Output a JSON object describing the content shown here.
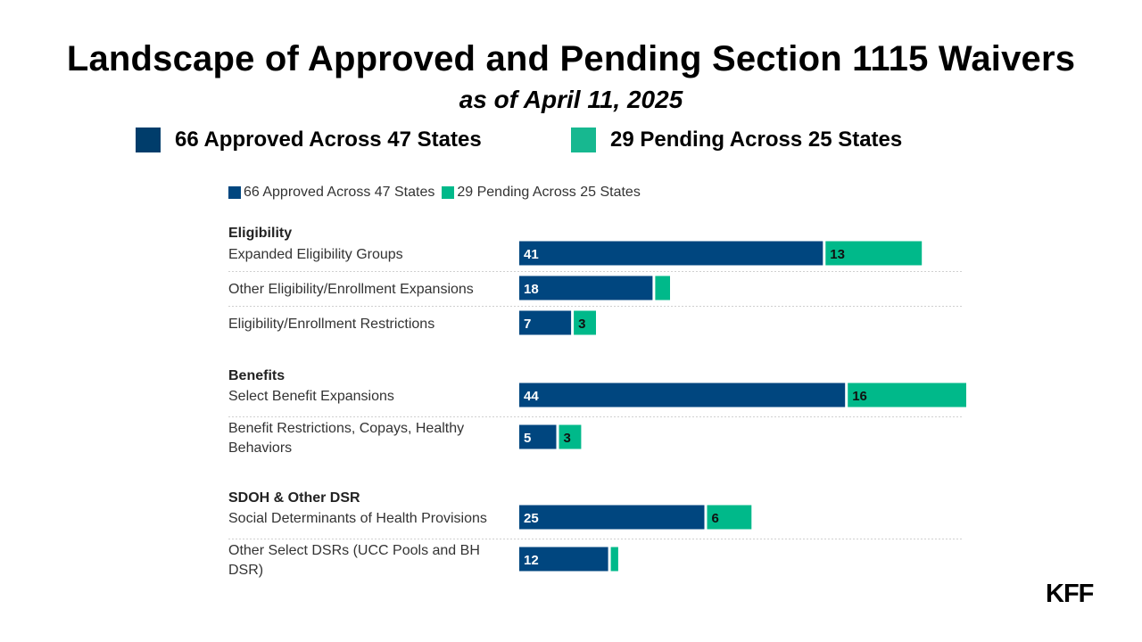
{
  "title": "Landscape of Approved and Pending Section 1115 Waivers",
  "subtitle": "as of April 11, 2025",
  "legend_large": [
    {
      "label": "66 Approved Across 47 States",
      "color": "#003d6b"
    },
    {
      "label": "29 Pending Across 25 States",
      "color": "#17b890"
    }
  ],
  "chart_data": {
    "type": "bar",
    "orientation": "horizontal",
    "stacked": true,
    "legend": [
      "66 Approved Across 47 States",
      "29 Pending Across 25 States"
    ],
    "colors": {
      "approved": "#00467f",
      "pending": "#00b98a"
    },
    "x_max": 60,
    "groups": [
      {
        "name": "Eligibility",
        "rows": [
          {
            "label": [
              "Expanded Eligibility Groups"
            ],
            "approved": 41,
            "pending": 13,
            "approved_label": "41",
            "pending_label": "13"
          },
          {
            "label": [
              "Other Eligibility/Enrollment Expansions"
            ],
            "approved": 18,
            "pending": 2,
            "approved_label": "18",
            "pending_label": ""
          },
          {
            "label": [
              "Eligibility/Enrollment Restrictions"
            ],
            "approved": 7,
            "pending": 3,
            "approved_label": "7",
            "pending_label": "3"
          }
        ]
      },
      {
        "name": "Benefits",
        "rows": [
          {
            "label": [
              "Select Benefit Expansions"
            ],
            "approved": 44,
            "pending": 16,
            "approved_label": "44",
            "pending_label": "16"
          },
          {
            "label": [
              "Benefit Restrictions, Copays, Healthy",
              "Behaviors"
            ],
            "approved": 5,
            "pending": 3,
            "approved_label": "5",
            "pending_label": "3"
          }
        ]
      },
      {
        "name": "SDOH & Other DSR",
        "rows": [
          {
            "label": [
              "Social Determinants of Health Provisions"
            ],
            "approved": 25,
            "pending": 6,
            "approved_label": "25",
            "pending_label": "6"
          },
          {
            "label": [
              "Other Select DSRs (UCC Pools and BH",
              "DSR)"
            ],
            "approved": 12,
            "pending": 1,
            "approved_label": "12",
            "pending_label": ""
          }
        ]
      }
    ]
  },
  "logo": "KFF"
}
